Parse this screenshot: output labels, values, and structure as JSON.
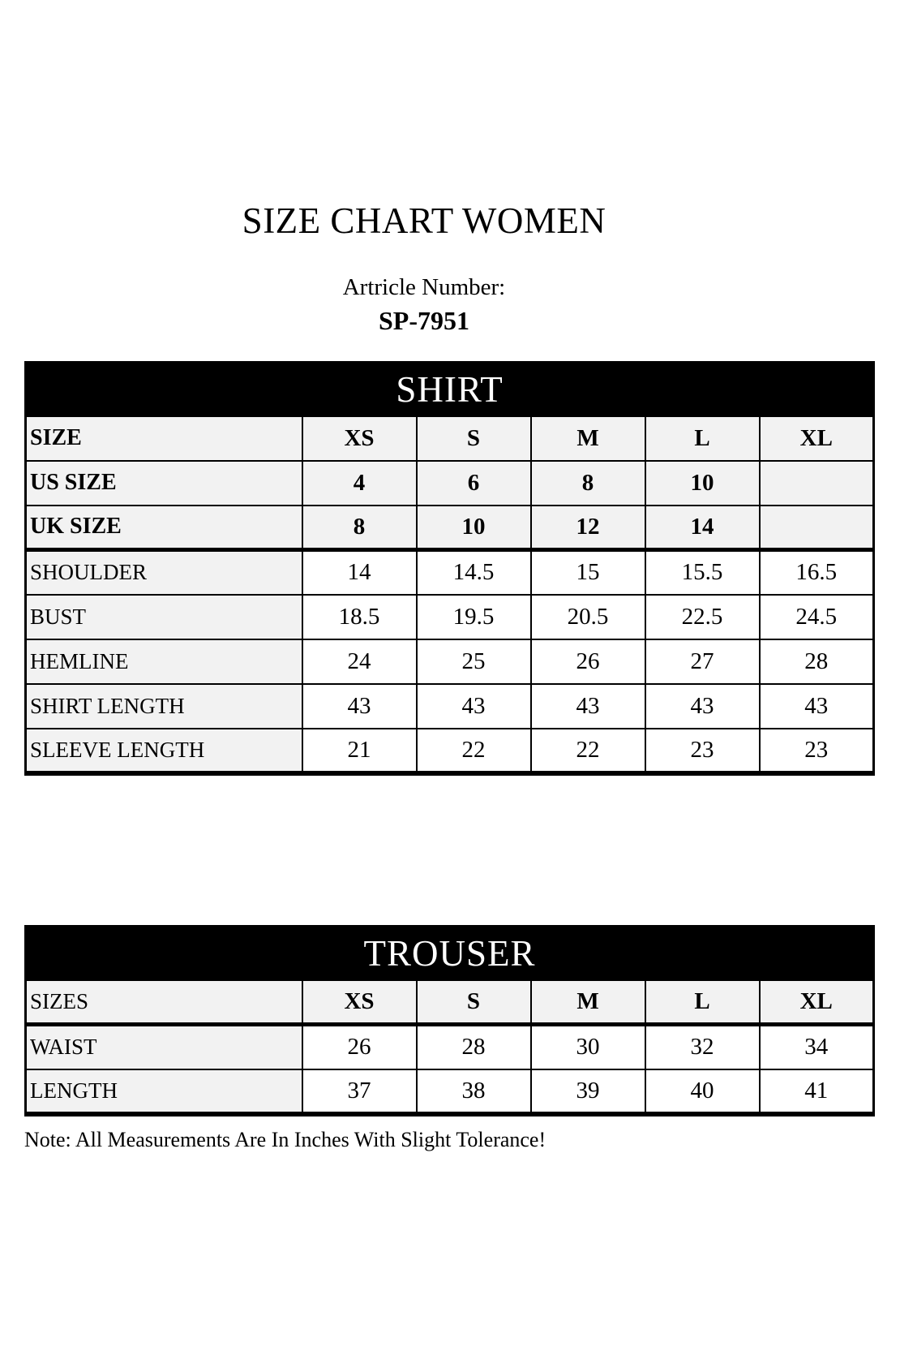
{
  "page": {
    "title": "SIZE CHART WOMEN",
    "article_label": "Artricle Number:",
    "article_number": "SP-7951",
    "note": "Note: All Measurements Are In Inches With Slight Tolerance!"
  },
  "colors": {
    "banner_bg": "#000000",
    "banner_text": "#ffffff",
    "header_cell_bg": "#f2f2f2",
    "data_cell_bg": "#ffffff",
    "border": "#000000"
  },
  "shirt": {
    "banner": "SHIRT",
    "header_rows": [
      {
        "label": "SIZE",
        "values": [
          "XS",
          "S",
          "M",
          "L",
          "XL"
        ]
      },
      {
        "label": "US SIZE",
        "values": [
          "4",
          "6",
          "8",
          "10",
          ""
        ]
      },
      {
        "label": "UK SIZE",
        "values": [
          "8",
          "10",
          "12",
          "14",
          ""
        ]
      }
    ],
    "body_rows": [
      {
        "label": "SHOULDER",
        "values": [
          "14",
          "14.5",
          "15",
          "15.5",
          "16.5"
        ]
      },
      {
        "label": "BUST",
        "values": [
          "18.5",
          "19.5",
          "20.5",
          "22.5",
          "24.5"
        ]
      },
      {
        "label": "HEMLINE",
        "values": [
          "24",
          "25",
          "26",
          "27",
          "28"
        ]
      },
      {
        "label": "SHIRT LENGTH",
        "values": [
          "43",
          "43",
          "43",
          "43",
          "43"
        ]
      },
      {
        "label": "SLEEVE LENGTH",
        "values": [
          "21",
          "22",
          "22",
          "23",
          "23"
        ]
      }
    ]
  },
  "trouser": {
    "banner": "TROUSER",
    "header_rows": [
      {
        "label": "SIZES",
        "values": [
          "XS",
          "S",
          "M",
          "L",
          "XL"
        ]
      }
    ],
    "body_rows": [
      {
        "label": "WAIST",
        "values": [
          "26",
          "28",
          "30",
          "32",
          "34"
        ]
      },
      {
        "label": "LENGTH",
        "values": [
          "37",
          "38",
          "39",
          "40",
          "41"
        ]
      }
    ]
  }
}
